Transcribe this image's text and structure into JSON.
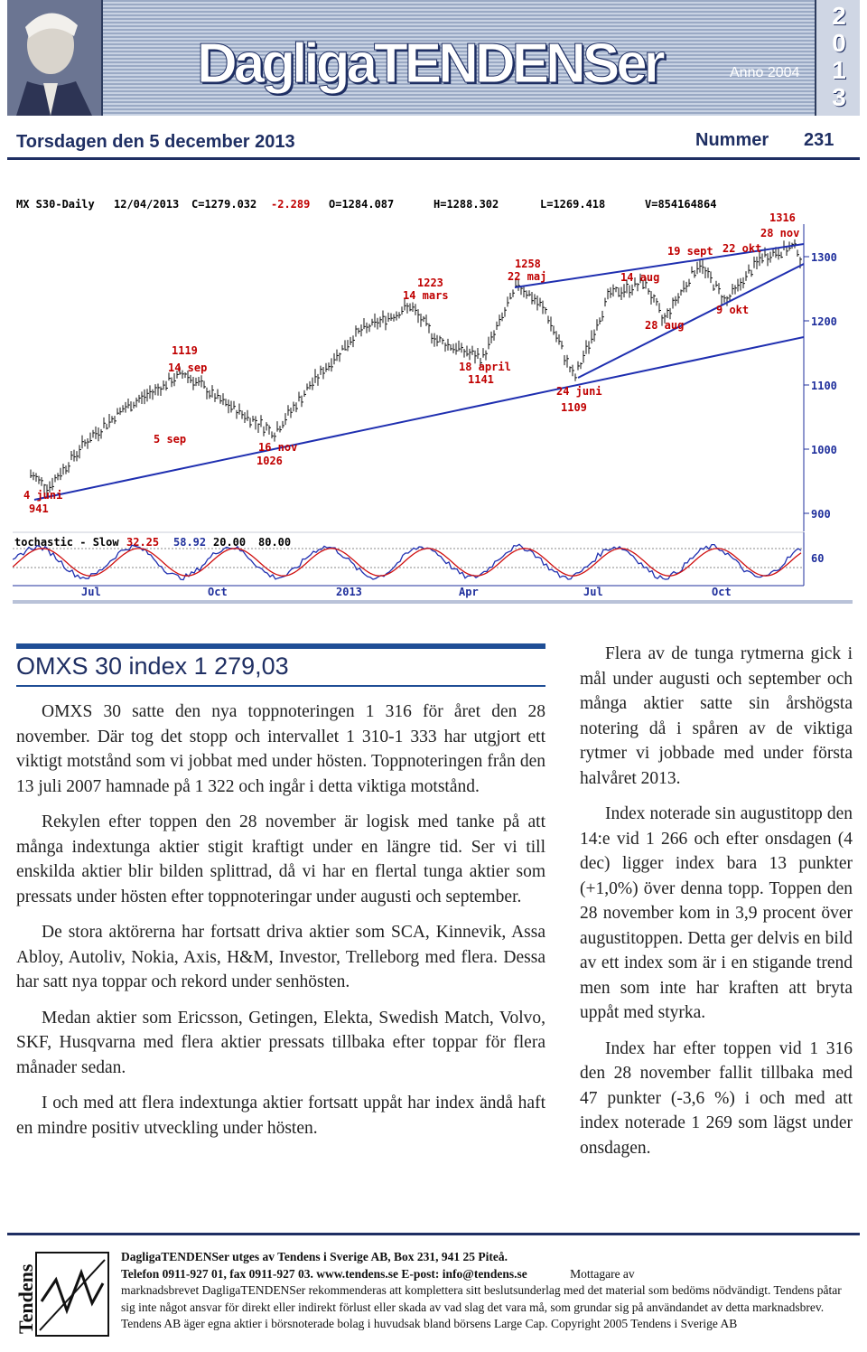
{
  "masthead": {
    "brand": "DagligaTENDENSer",
    "anno": "Anno 2004",
    "year_digits": [
      "2",
      "0",
      "1",
      "3"
    ]
  },
  "issue": {
    "date": "Torsdagen  den 5 december 2013",
    "number_label": "Nummer",
    "number": "231"
  },
  "chart": {
    "header": {
      "symbol": "MX S30-Daily",
      "date": "12/04/2013",
      "close": "C=1279.032",
      "change": "-2.289",
      "open": "O=1284.087",
      "high": "H=1288.302",
      "low": "L=1269.418",
      "volume": "V=854164864"
    },
    "annotations": [
      {
        "line1": "1316",
        "line2": "28 nov"
      },
      {
        "line1": "19 sept"
      },
      {
        "line1": "22 okt"
      },
      {
        "line1": "14 aug"
      },
      {
        "line1": "28 aug"
      },
      {
        "line1": "9 okt"
      },
      {
        "line1": "1258",
        "line2": "22 maj"
      },
      {
        "line1": "1223",
        "line2": "14 mars"
      },
      {
        "line1": "1119",
        "line2": "14 sep"
      },
      {
        "line1": "18 april",
        "line2": "1141"
      },
      {
        "line1": "24 juni",
        "line2": "1109"
      },
      {
        "line1": "5 sep"
      },
      {
        "line1": "16 nov",
        "line2": "1026"
      },
      {
        "line1": "4 juni",
        "line2": "941"
      }
    ],
    "price_axis": [
      "1300",
      "1200",
      "1100",
      "1000",
      "900"
    ],
    "stochastic": {
      "label": "tochastic - Slow",
      "v1": "32.25",
      "v2": "58.92",
      "v3": "20.00",
      "v4": "80.00",
      "axis_label": "60"
    },
    "time_axis": [
      "Jul",
      "Oct",
      "2013",
      "Apr",
      "Jul",
      "Oct"
    ],
    "colors": {
      "header": "#000000",
      "labels": "#c00000",
      "axis": "#1f2f9c",
      "trendline": "#1f2fb0",
      "stoch_k": "#1f2fb0",
      "stoch_d": "#d01010"
    }
  },
  "article": {
    "headline": "OMXS 30 index 1 279,03",
    "col1": [
      "OMXS 30 satte den nya toppnoteringen 1 316 för året den 28 november. Där tog det stopp och intervallet 1 310-1 333 har utgjort ett viktigt motstånd som vi jobbat med under hösten. Toppnoteringen från den 13 juli 2007 hamnade på 1 322 och ingår i detta viktiga motstånd.",
      "Rekylen efter toppen den 28 november är logisk med tanke på att många indextunga aktier stigit kraftigt under en längre tid. Ser vi till enskilda aktier blir bilden splittrad, då vi har en flertal tunga aktier som pressats under hösten efter toppnoteringar under augusti och september.",
      "De stora aktörerna har fortsatt driva aktier som SCA, Kinnevik, Assa Abloy, Autoliv, Nokia, Axis, H&M, Investor, Trelleborg med flera. Dessa har satt nya toppar och rekord under senhösten.",
      "Medan aktier som Ericsson, Getingen, Elekta, Swedish Match, Volvo, SKF, Husqvarna med flera aktier pressats tillbaka efter toppar för flera månader sedan.",
      "I och med att flera indextunga aktier fortsatt uppåt har index ändå haft en mindre positiv utveckling under hösten."
    ],
    "col2": [
      "Flera av de tunga rytmerna gick i mål under augusti och september och många aktier satte sin årshögsta notering då i spåren av de viktiga rytmer vi jobbade med under första halvåret 2013.",
      "Index noterade sin augustitopp den 14:e vid 1 266 och efter onsdagen (4 dec) ligger index bara 13 punkter (+1,0%) över denna topp. Toppen den 28 november kom in 3,9 procent över augustitoppen. Detta ger delvis en bild av ett index som är i en stigande trend men som inte har kraften att bryta uppåt med styrka.",
      "Index har efter toppen vid 1 316 den 28 november fallit tillbaka med 47 punkter (-3,6 %) i och med att index noterade 1 269 som lägst under onsdagen."
    ]
  },
  "footer": {
    "logo_text": "Tendens",
    "line1": "DagligaTENDENSer utges av Tendens i Sverige AB, Box 231, 941 25 Piteå.",
    "line2": "Telefon 0911-927 01, fax 0911-927 03. www.tendens.se  E-post: info@tendens.se",
    "line2_tail": "Mottagare av",
    "disclaimer": "marknadsbrevet DagligaTENDENSer rekommenderas att komplettera sitt beslutsunderlag med det material som bedöms nödvändigt. Tendens påtar sig inte något ansvar för direkt eller indirekt förlust eller skada av vad slag det vara må, som grundar sig på användandet av detta marknadsbrev.  Tendens AB äger egna aktier i börsnoterade bolag i huvudsak bland börsens Large Cap. Copyright 2005 Tendens i Sverige AB"
  }
}
